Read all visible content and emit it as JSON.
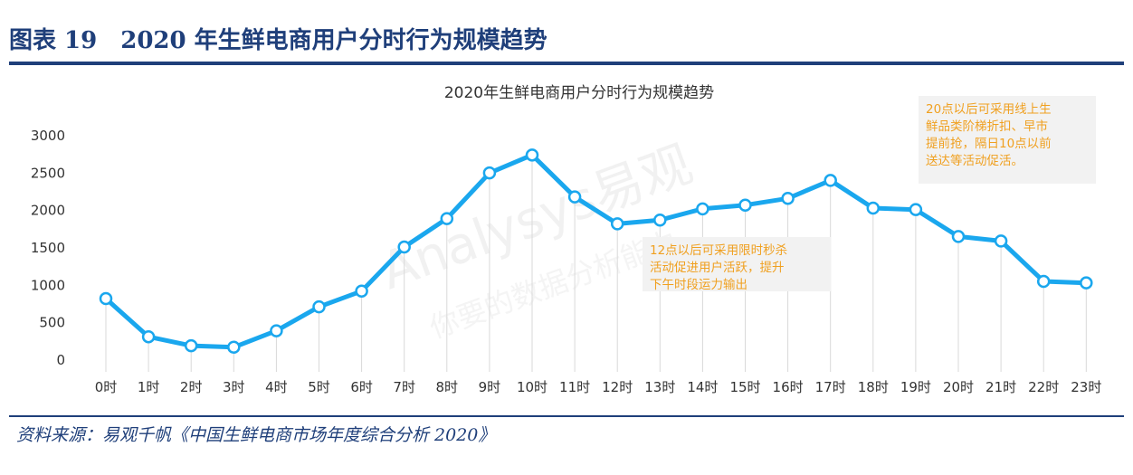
{
  "figure": {
    "header_title": "图表 19　2020 年生鲜电商用户分时行为规模趋势",
    "source": "资料来源：易观千帆《中国生鲜电商市场年度综合分析 2020》",
    "colors": {
      "header": "#1f3f7a",
      "line": "#1aa7ee",
      "annotation_text": "#f0a020",
      "annotation_bg": "#f2f2f2",
      "axis_text": "#333333",
      "vgrid": "#d9d9d9"
    },
    "watermark": "Analysys易观 你要的数据分析能力"
  },
  "chart_data": {
    "type": "line",
    "title": "2020年生鲜电商用户分时行为规模趋势",
    "categories": [
      "0时",
      "1时",
      "2时",
      "3时",
      "4时",
      "5时",
      "6时",
      "7时",
      "8时",
      "9时",
      "10时",
      "11时",
      "12时",
      "13时",
      "14时",
      "15时",
      "16时",
      "17时",
      "18时",
      "19时",
      "20时",
      "21时",
      "22时",
      "23时"
    ],
    "series": [
      {
        "values": [
          810,
          300,
          180,
          160,
          380,
          700,
          910,
          1500,
          1880,
          2490,
          2730,
          2170,
          1810,
          1860,
          2010,
          2060,
          2150,
          2390,
          2020,
          2000,
          1640,
          1580,
          1040,
          1020
        ]
      }
    ],
    "y_ticks": [
      0,
      500,
      1000,
      1500,
      2000,
      2500,
      3000
    ],
    "ylim": [
      0,
      3000
    ],
    "xlabel": "",
    "ylabel": "",
    "annotations": [
      {
        "anchor": "12时",
        "lines": [
          "12点以后可采用限时秒杀",
          "活动促进用户活跃，提升",
          "下午时段运力输出"
        ]
      },
      {
        "anchor": "21时",
        "lines": [
          "20点以后可采用线上生",
          "鲜品类阶梯折扣、早市",
          "提前抢，隔日10点以前",
          "送达等活动促活。"
        ]
      }
    ],
    "grid": "vertical drop lines from each point"
  }
}
